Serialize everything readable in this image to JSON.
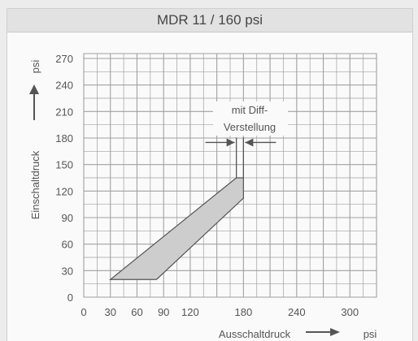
{
  "title": "MDR 11 / 160 psi",
  "chart_data": {
    "type": "area",
    "title": "MDR 11 / 160 psi",
    "xlabel": "Ausschaltdruck",
    "xunit": "psi",
    "ylabel": "Einschaltdruck",
    "yunit": "psi",
    "xlim": [
      0,
      330
    ],
    "ylim": [
      0,
      270
    ],
    "x_ticks": [
      0,
      30,
      60,
      90,
      120,
      180,
      240,
      300
    ],
    "y_ticks": [
      0,
      30,
      60,
      90,
      120,
      150,
      180,
      210,
      240,
      270
    ],
    "grid": true,
    "band": {
      "polygon": [
        [
          30,
          20
        ],
        [
          82,
          20
        ],
        [
          180,
          112
        ],
        [
          180,
          135
        ],
        [
          172,
          135
        ]
      ]
    },
    "diff_marker": {
      "x": [
        172,
        180
      ],
      "y_top": 175
    },
    "annotation": {
      "line1": "mit Diff-",
      "line2": "Verstellung"
    }
  },
  "colors": {
    "band_fill": "#cdcdcd",
    "line": "#555555",
    "grid": "#a0a0a0"
  }
}
